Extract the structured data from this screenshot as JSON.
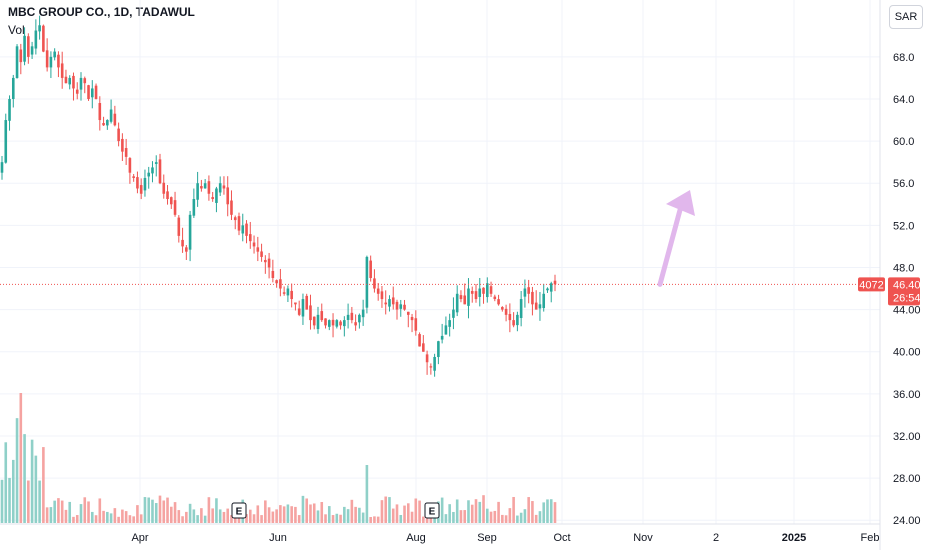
{
  "header": {
    "title": "MBC GROUP CO., 1D, TADAWUL",
    "volume_label": "Vol",
    "currency": "SAR"
  },
  "price_badges": {
    "volume": "4072",
    "price": "46.40",
    "countdown": "26:54"
  },
  "earnings_marker": "E",
  "colors": {
    "up": "#26a69a",
    "down": "#ef5350",
    "up_volume": "#8fd0c8",
    "down_volume": "#f5a3a1",
    "arrow": "#e1b7ec",
    "grid": "#f0f3fa",
    "price_line": "#ef5350"
  },
  "icons": [
    "arrow-up-icon"
  ],
  "chart_data": {
    "type": "candlestick",
    "title": "MBC GROUP CO., 1D, TADAWUL",
    "x_ticks": [
      "Apr",
      "Jun",
      "Aug",
      "Sep",
      "Oct",
      "Nov",
      "2",
      "2025",
      "Feb"
    ],
    "y_ticks": [
      "68.0",
      "64.0",
      "60.0",
      "56.0",
      "52.0",
      "48.0",
      "44.00",
      "40.00",
      "36.00",
      "32.00",
      "28.00",
      "24.00"
    ],
    "y_range": [
      22.5,
      71.5
    ],
    "last_price": 46.4,
    "earnings_markers": [
      "E",
      "E"
    ],
    "series": {
      "close": [
        58,
        62,
        64,
        66,
        69,
        67.5,
        70,
        68,
        69,
        70.5,
        71,
        68.5,
        67,
        68,
        68.5,
        67,
        66,
        65.5,
        66,
        65,
        64.5,
        66,
        65.5,
        64,
        65,
        64,
        62,
        61.5,
        62,
        63,
        61.5,
        60,
        59,
        58.5,
        57,
        56.5,
        55.5,
        55,
        56.5,
        57,
        57.5,
        58,
        56,
        55,
        54.5,
        54,
        53,
        51,
        50,
        49.5,
        53,
        54.5,
        56,
        55.5,
        56,
        55,
        54.5,
        55.5,
        56,
        55.5,
        54,
        53,
        52.5,
        51.5,
        52,
        51,
        50.5,
        50,
        49.5,
        49,
        48.5,
        48,
        47,
        46.5,
        46,
        45.5,
        46,
        45,
        44.5,
        43.5,
        45,
        44,
        43,
        42.5,
        43.5,
        43,
        42.5,
        43,
        42.5,
        43,
        42.5,
        43,
        43.5,
        43,
        42.5,
        43.5,
        44,
        49,
        47,
        46,
        45.5,
        45,
        44.5,
        45,
        44.5,
        44,
        44.5,
        44,
        43.5,
        43,
        42,
        40.5,
        40,
        39,
        38.5,
        39.5,
        41,
        41.5,
        42.5,
        43,
        44,
        45.5,
        45,
        44.5,
        46,
        45.5,
        45,
        46,
        45.5,
        46.5,
        45.5,
        45,
        44.5,
        44,
        43.5,
        43,
        42.5,
        43.5,
        45,
        46,
        45.5,
        44.5,
        44,
        44.5,
        45.5,
        46,
        46.5,
        46.4
      ]
    },
    "volume_range": [
      0,
      100
    ]
  }
}
